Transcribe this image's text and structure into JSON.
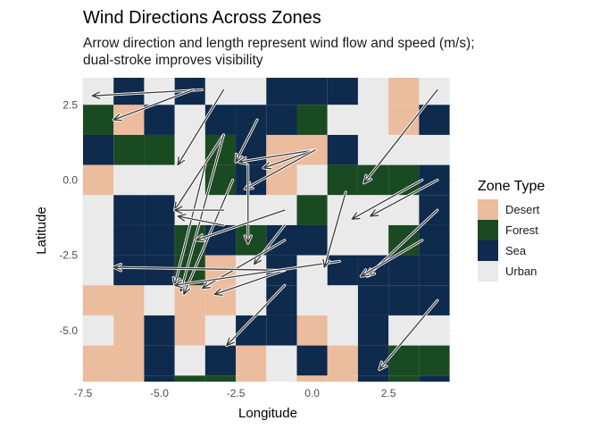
{
  "chart_data": {
    "type": "heatmap",
    "title": "Wind Directions Across Zones",
    "subtitle_lines": [
      "Arrow direction and length represent wind flow and speed (m/s);",
      "dual-stroke improves visibility"
    ],
    "xlabel": "Longitude",
    "ylabel": "Latitude",
    "xlim": [
      -7.5,
      4.6
    ],
    "ylim": [
      -6.7,
      3.4
    ],
    "x_ticks": [
      -7.5,
      -5.0,
      -2.5,
      0.0,
      2.5
    ],
    "x_tick_labels": [
      "-7.5",
      "-5.0",
      "-2.5",
      "0.0",
      "2.5"
    ],
    "y_ticks": [
      2.5,
      0.0,
      -2.5,
      -5.0
    ],
    "y_tick_labels": [
      "2.5",
      "0.0",
      "-2.5",
      "-5.0"
    ],
    "grid": true,
    "legend": {
      "title": "Zone Type",
      "position": "right",
      "entries": [
        {
          "label": "Desert",
          "color": "#EBBC9D"
        },
        {
          "label": "Forest",
          "color": "#1A4A22"
        },
        {
          "label": "Sea",
          "color": "#0E2A4D"
        },
        {
          "label": "Urban",
          "color": "#EAEAEA"
        }
      ]
    },
    "tiles": {
      "x_start": -7.5,
      "y_top": 3.5,
      "cell_width": 1.0,
      "cell_height": 1.0,
      "codes": {
        "D": "Desert",
        "F": "Forest",
        "S": "Sea",
        "U": "Urban"
      },
      "rows": [
        "USUSUUSSSUDU",
        "FDSUSSSFUUDS",
        "SFFUFSDDSUUU",
        "DUUUFSDUFFFS",
        "USSUUUUFUUUS",
        "USSFSFSSUUFS",
        "USSFDUSUSSSS",
        "DDUDDUSUUSSS",
        "UDSDUSSDUSUU",
        "DDSUSDUSDSFF",
        "DDSFFDUDDSFS"
      ]
    },
    "arrows": [
      {
        "from": [
          -3.6,
          3.0
        ],
        "to": [
          -7.2,
          2.8
        ]
      },
      {
        "from": [
          -3.9,
          3.0
        ],
        "to": [
          -6.5,
          2.0
        ]
      },
      {
        "from": [
          -2.9,
          3.0
        ],
        "to": [
          -4.4,
          0.5
        ]
      },
      {
        "from": [
          -1.8,
          2.0
        ],
        "to": [
          -2.5,
          0.6
        ]
      },
      {
        "from": [
          -2.9,
          1.5
        ],
        "to": [
          -4.5,
          -1.0
        ]
      },
      {
        "from": [
          -2.9,
          1.5
        ],
        "to": [
          -4.3,
          -3.7
        ]
      },
      {
        "from": [
          -3.5,
          0.5
        ],
        "to": [
          -4.5,
          -3.5
        ]
      },
      {
        "from": [
          -2.6,
          0.0
        ],
        "to": [
          -4.2,
          -3.8
        ]
      },
      {
        "from": [
          0.1,
          1.0
        ],
        "to": [
          -2.4,
          0.6
        ]
      },
      {
        "from": [
          0.1,
          1.0
        ],
        "to": [
          -1.6,
          0.4
        ]
      },
      {
        "from": [
          0.1,
          1.0
        ],
        "to": [
          -2.2,
          -0.3
        ]
      },
      {
        "from": [
          -2.1,
          0.5
        ],
        "to": [
          -2.1,
          -2.1
        ]
      },
      {
        "from": [
          -2.9,
          -1.0
        ],
        "to": [
          -4.5,
          -1.0
        ]
      },
      {
        "from": [
          -2.9,
          -1.5
        ],
        "to": [
          -4.4,
          -1.2
        ]
      },
      {
        "from": [
          -0.9,
          -1.0
        ],
        "to": [
          -3.8,
          -2.0
        ]
      },
      {
        "from": [
          -0.9,
          -1.5
        ],
        "to": [
          -1.9,
          -2.8
        ]
      },
      {
        "from": [
          -0.9,
          -2.0
        ],
        "to": [
          -3.6,
          -3.6
        ]
      },
      {
        "from": [
          -0.9,
          -3.0
        ],
        "to": [
          -3.2,
          -3.8
        ]
      },
      {
        "from": [
          -0.9,
          -3.0
        ],
        "to": [
          -6.5,
          -2.9
        ]
      },
      {
        "from": [
          -0.9,
          -3.5
        ],
        "to": [
          -2.8,
          -5.5
        ]
      },
      {
        "from": [
          0.9,
          -2.7
        ],
        "to": [
          -4.5,
          -3.5
        ]
      },
      {
        "from": [
          1.1,
          -0.4
        ],
        "to": [
          0.4,
          -2.9
        ]
      },
      {
        "from": [
          4.1,
          3.0
        ],
        "to": [
          1.7,
          -0.1
        ]
      },
      {
        "from": [
          3.6,
          0.0
        ],
        "to": [
          1.3,
          -1.3
        ]
      },
      {
        "from": [
          4.1,
          0.0
        ],
        "to": [
          1.9,
          -1.2
        ]
      },
      {
        "from": [
          4.1,
          -1.0
        ],
        "to": [
          1.8,
          -3.2
        ]
      },
      {
        "from": [
          3.6,
          -2.0
        ],
        "to": [
          1.6,
          -3.2
        ]
      },
      {
        "from": [
          4.1,
          -4.0
        ],
        "to": [
          2.2,
          -6.3
        ]
      }
    ]
  }
}
